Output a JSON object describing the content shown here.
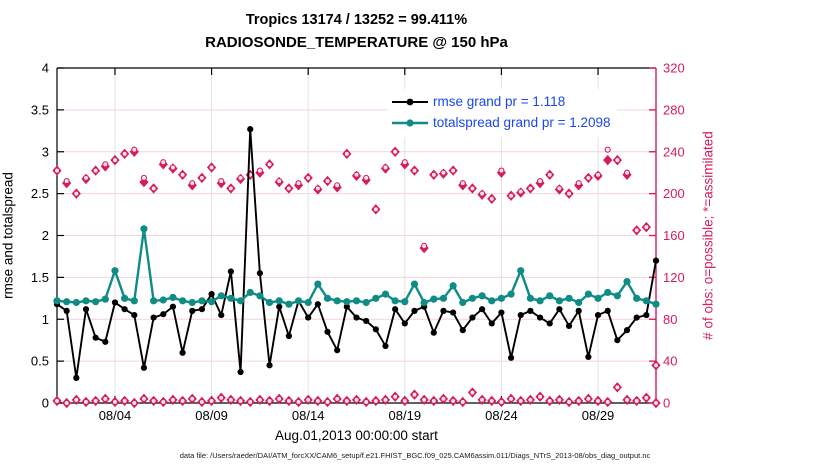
{
  "title": {
    "line1": "Tropics 13174 / 13252 = 99.411%",
    "line2": "RADIOSONDE_TEMPERATURE @ 150 hPa"
  },
  "legend": {
    "rows": [
      {
        "label": "rmse grand pr = 1.118",
        "color": "#000000"
      },
      {
        "label": "totalspread grand pr = 1.2098",
        "color": "#0e8c85"
      }
    ],
    "text_color": "#1a46f0"
  },
  "footer": {
    "data_file": "data file: /Users/raeder/DAI/ATM_forcXX/CAM6_setup/f.e21.FHIST_BGC.f09_025.CAM6assim.011/Diags_NTrS_2013-08/obs_diag_output.nc"
  },
  "colors": {
    "rmse": "#000000",
    "totalspread": "#0e8c85",
    "obs_count": "#d81b60",
    "grid_horizontal": "#f2d4da",
    "grid_vertical": "#e2e2e2",
    "legend_text": "#1a46f0"
  },
  "chart_data": {
    "type": "line",
    "title": "Tropics 13174 / 13252 = 99.411% — RADIOSONDE_TEMPERATURE @ 150 hPa",
    "left_axis": {
      "label": "rmse and totalspread",
      "range": [
        0,
        4
      ],
      "tick_step": 0.5,
      "ticks": [
        0,
        0.5,
        1,
        1.5,
        2,
        2.5,
        3,
        3.5,
        4
      ]
    },
    "right_axis": {
      "label": "# of obs: o=possible; *=assimilated",
      "range": [
        0,
        320
      ],
      "tick_step": 40,
      "ticks": [
        0,
        40,
        80,
        120,
        160,
        200,
        240,
        280,
        320
      ],
      "color": "#d81b60"
    },
    "x_axis": {
      "label": "Aug.01,2013 00:00:00 start",
      "start": "Aug 01 2013 00:00",
      "end": "Sep 01 2013 00:00",
      "range_days": [
        0,
        31
      ],
      "points_interval_hours": 12,
      "tick_labels": [
        "08/04",
        "08/09",
        "08/14",
        "08/19",
        "08/24",
        "08/29"
      ],
      "tick_days": [
        3,
        8,
        13,
        18,
        23,
        28
      ]
    },
    "grand_means": {
      "rmse": 1.118,
      "totalspread": 1.2098
    },
    "series": [
      {
        "name": "rmse",
        "axis": "left",
        "color": "#000000",
        "marker": "circle",
        "values": [
          1.18,
          1.1,
          0.3,
          1.12,
          0.78,
          0.73,
          1.2,
          1.12,
          1.05,
          0.42,
          1.02,
          1.06,
          1.15,
          0.6,
          1.1,
          1.12,
          1.3,
          1.05,
          1.57,
          0.37,
          3.27,
          1.55,
          0.45,
          1.15,
          0.8,
          1.22,
          1.02,
          1.18,
          0.85,
          0.63,
          1.15,
          1.02,
          0.98,
          0.88,
          0.68,
          1.12,
          0.95,
          1.1,
          1.15,
          0.84,
          1.1,
          1.08,
          0.87,
          1.02,
          1.12,
          0.95,
          1.08,
          0.54,
          1.05,
          1.1,
          1.02,
          0.95,
          1.12,
          0.92,
          1.1,
          0.55,
          1.05,
          1.1,
          0.75,
          0.87,
          1.02,
          1.05,
          1.7
        ]
      },
      {
        "name": "totalspread",
        "axis": "left",
        "color": "#0e8c85",
        "marker": "circle",
        "values": [
          1.22,
          1.21,
          1.2,
          1.22,
          1.21,
          1.24,
          1.58,
          1.25,
          1.22,
          2.08,
          1.22,
          1.23,
          1.26,
          1.22,
          1.2,
          1.22,
          1.21,
          1.28,
          1.25,
          1.22,
          1.32,
          1.28,
          1.2,
          1.22,
          1.18,
          1.22,
          1.2,
          1.42,
          1.25,
          1.22,
          1.21,
          1.22,
          1.2,
          1.25,
          1.3,
          1.22,
          1.21,
          1.42,
          1.2,
          1.24,
          1.25,
          1.4,
          1.2,
          1.25,
          1.28,
          1.22,
          1.25,
          1.3,
          1.58,
          1.25,
          1.22,
          1.28,
          1.22,
          1.25,
          1.2,
          1.3,
          1.25,
          1.32,
          1.28,
          1.45,
          1.25,
          1.22,
          1.18
        ]
      },
      {
        "name": "n_possible",
        "axis": "right",
        "color": "#d81b60",
        "marker": "o",
        "values": [
          222,
          212,
          200,
          215,
          222,
          228,
          232,
          238,
          242,
          215,
          205,
          230,
          225,
          218,
          210,
          215,
          225,
          212,
          205,
          215,
          218,
          222,
          228,
          212,
          205,
          210,
          215,
          205,
          212,
          208,
          238,
          218,
          215,
          185,
          225,
          240,
          230,
          222,
          150,
          218,
          220,
          222,
          210,
          205,
          200,
          195,
          222,
          198,
          202,
          205,
          212,
          218,
          205,
          200,
          210,
          215,
          218,
          242,
          232,
          220,
          165,
          168,
          36
        ]
      },
      {
        "name": "n_assimilated",
        "axis": "right",
        "color": "#d81b60",
        "marker": "*",
        "values": [
          222,
          210,
          200,
          214,
          222,
          226,
          232,
          238,
          240,
          211,
          205,
          228,
          224,
          218,
          208,
          215,
          225,
          210,
          205,
          214,
          218,
          220,
          228,
          211,
          205,
          208,
          215,
          204,
          212,
          206,
          238,
          217,
          213,
          185,
          224,
          240,
          228,
          222,
          148,
          218,
          219,
          222,
          208,
          205,
          199,
          195,
          220,
          198,
          201,
          205,
          210,
          218,
          204,
          200,
          208,
          215,
          217,
          232,
          232,
          218,
          165,
          168,
          36
        ]
      },
      {
        "name": "near_zero_obs_markers",
        "axis": "right",
        "color": "#d81b60",
        "marker": "*",
        "values": [
          2,
          0,
          3,
          1,
          2,
          4,
          1,
          2,
          0,
          4,
          2,
          1,
          3,
          2,
          4,
          1,
          2,
          5,
          3,
          2,
          1,
          3,
          2,
          4,
          2,
          1,
          3,
          2,
          1,
          4,
          2,
          3,
          1,
          2,
          3,
          6,
          2,
          8,
          3,
          2,
          4,
          2,
          1,
          10,
          3,
          2,
          1,
          4,
          2,
          3,
          6,
          2,
          3,
          1,
          2,
          4,
          2,
          1,
          15,
          3,
          2,
          5,
          0
        ]
      }
    ]
  }
}
